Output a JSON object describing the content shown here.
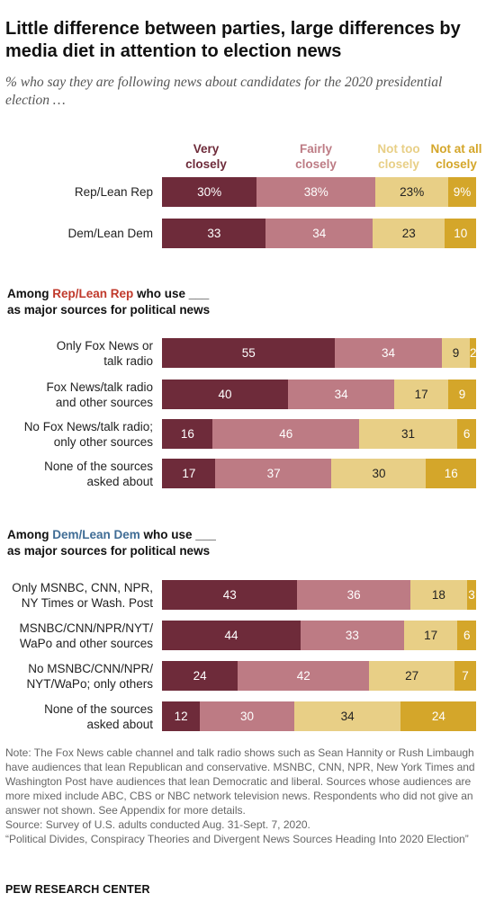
{
  "title": "Little difference between parties, large differences by media diet in attention to election news",
  "subtitle": "% who say they are following news about candidates for the 2020 presidential election …",
  "colors": {
    "very_closely": "#6e2b3a",
    "fairly_closely": "#bd7b84",
    "not_too_closely": "#e8cf86",
    "not_at_all_closely": "#d4a62a",
    "rep_accent": "#c0392b",
    "dem_accent": "#3f6c95"
  },
  "legend": [
    "Very closely",
    "Fairly closely",
    "Not too closely",
    "Not at all closely"
  ],
  "sections": {
    "rep": {
      "prefix": "Among ",
      "highlight": "Rep/Lean Rep",
      "suffix": " who use ___",
      "line2": "as major sources for political news"
    },
    "dem": {
      "prefix": "Among ",
      "highlight": "Dem/Lean Dem",
      "suffix": " who use ___",
      "line2": "as major sources for political news"
    }
  },
  "chart_data": {
    "type": "bar",
    "orientation": "horizontal",
    "stacked": true,
    "xlim": [
      0,
      100
    ],
    "series_names": [
      "Very closely",
      "Fairly closely",
      "Not too closely",
      "Not at all closely"
    ],
    "rows": [
      {
        "label": [
          "Rep/Lean Rep"
        ],
        "values": [
          30,
          38,
          23,
          9
        ],
        "display": [
          "30%",
          "38%",
          "23%",
          "9%"
        ]
      },
      {
        "label": [
          "Dem/Lean Dem"
        ],
        "values": [
          33,
          34,
          23,
          10
        ],
        "display": [
          "33",
          "34",
          "23",
          "10"
        ]
      },
      {
        "label": [
          "Only Fox News or",
          "talk radio"
        ],
        "values": [
          55,
          34,
          9,
          2
        ],
        "display": [
          "55",
          "34",
          "9",
          "2"
        ]
      },
      {
        "label": [
          "Fox News/talk radio",
          "and other sources"
        ],
        "values": [
          40,
          34,
          17,
          9
        ],
        "display": [
          "40",
          "34",
          "17",
          "9"
        ]
      },
      {
        "label": [
          "No Fox News/talk radio;",
          "only other sources"
        ],
        "values": [
          16,
          46,
          31,
          6
        ],
        "display": [
          "16",
          "46",
          "31",
          "6"
        ]
      },
      {
        "label": [
          "None of the sources",
          "asked about"
        ],
        "values": [
          17,
          37,
          30,
          16
        ],
        "display": [
          "17",
          "37",
          "30",
          "16"
        ]
      },
      {
        "label": [
          "Only MSNBC, CNN, NPR,",
          "NY Times or Wash. Post"
        ],
        "values": [
          43,
          36,
          18,
          3
        ],
        "display": [
          "43",
          "36",
          "18",
          "3"
        ]
      },
      {
        "label": [
          "MSNBC/CNN/NPR/NYT/",
          "WaPo and other sources"
        ],
        "values": [
          44,
          33,
          17,
          6
        ],
        "display": [
          "44",
          "33",
          "17",
          "6"
        ]
      },
      {
        "label": [
          "No MSNBC/CNN/NPR/",
          "NYT/WaPo; only others"
        ],
        "values": [
          24,
          42,
          27,
          7
        ],
        "display": [
          "24",
          "42",
          "27",
          "7"
        ]
      },
      {
        "label": [
          "None of the sources",
          "asked about"
        ],
        "values": [
          12,
          30,
          34,
          24
        ],
        "display": [
          "12",
          "30",
          "34",
          "24"
        ]
      }
    ]
  },
  "note": "Note: The Fox News cable channel and talk radio shows such as Sean Hannity or Rush Limbaugh have audiences that lean Republican and conservative. MSNBC, CNN, NPR, New York Times and Washington Post have audiences that lean Democratic and liberal. Sources whose audiences are more mixed include ABC, CBS or NBC network television news. Respondents who did not give an answer not shown. See Appendix for more details.",
  "source": "Source: Survey of U.S. adults conducted Aug. 31-Sept. 7, 2020.",
  "report": "“Political Divides, Conspiracy Theories and Divergent News Sources Heading Into 2020 Election”",
  "brand": "PEW RESEARCH CENTER"
}
